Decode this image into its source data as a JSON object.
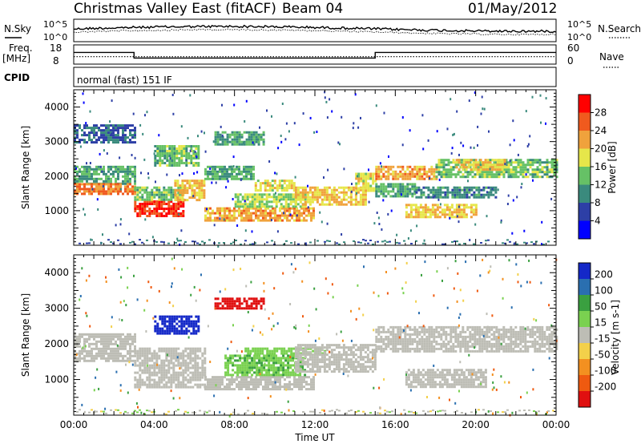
{
  "header": {
    "title": "Christmas Valley East (fitACF)",
    "beam": "Beam 04",
    "date": "01/May/2012"
  },
  "noise_panel": {
    "left_label": "N.Sky",
    "left_ticks": [
      "10^5",
      "10^0"
    ],
    "right_ticks": [
      "10^5",
      "10^0"
    ],
    "right_label": "N.Search"
  },
  "freq_panel": {
    "left_label_line1": "Freq.",
    "left_label_line2": "[MHz]",
    "left_ticks": [
      "18",
      "8"
    ],
    "right_ticks": [
      "60",
      "0"
    ],
    "right_label": "Nave"
  },
  "cpid": {
    "label": "CPID",
    "text": "normal (fast) 151 IF"
  },
  "power_panel": {
    "ylabel": "Slant Range [km]",
    "yticks": [
      "1000",
      "2000",
      "3000",
      "4000"
    ],
    "colorbar_label": "Power [dB]",
    "colorbar_ticks": [
      "4",
      "8",
      "12",
      "16",
      "20",
      "24",
      "28"
    ],
    "colors": [
      "#0000ff",
      "#2d3fa6",
      "#3a8a7d",
      "#66c166",
      "#e6e64a",
      "#f0a23c",
      "#f05a1e",
      "#ff0000"
    ]
  },
  "velocity_panel": {
    "ylabel": "Slant Range [km]",
    "yticks": [
      "1000",
      "2000",
      "3000",
      "4000"
    ],
    "colorbar_label": "Velocity [m s-1]",
    "colorbar_ticks": [
      "200",
      "100",
      "50",
      "15",
      "-15",
      "-50",
      "-100",
      "-200"
    ],
    "colors": [
      "#1428c8",
      "#2a6fb0",
      "#3aa040",
      "#7ad150",
      "#bdbdb5",
      "#f3d04a",
      "#f39020",
      "#ef5a10",
      "#e01010"
    ]
  },
  "xaxis": {
    "ticks": [
      "00:00",
      "04:00",
      "08:00",
      "12:00",
      "16:00",
      "20:00",
      "00:00"
    ],
    "label": "Time UT"
  },
  "chart_data": {
    "type": "heatmap",
    "title": "Christmas Valley East (fitACF)",
    "x_unit": "hours UT",
    "xlim": [
      0,
      24
    ],
    "ylim": [
      0,
      4500
    ],
    "freq_segments": [
      {
        "start": 0,
        "end": 3,
        "freq_mhz": 14.3
      },
      {
        "start": 3,
        "end": 15,
        "freq_mhz": 10.8
      },
      {
        "start": 15,
        "end": 24,
        "freq_mhz": 14.3
      }
    ],
    "nave_level": 10,
    "power_bands": [
      {
        "t0": 0.0,
        "t1": 3.0,
        "r0": 1800,
        "r1": 2300,
        "db": 12
      },
      {
        "t0": 0.0,
        "t1": 3.0,
        "r0": 1500,
        "r1": 1800,
        "db": 24
      },
      {
        "t0": 0.0,
        "t1": 3.0,
        "r0": 3000,
        "r1": 3500,
        "db": 8
      },
      {
        "t0": 3.0,
        "t1": 5.5,
        "r0": 850,
        "r1": 1300,
        "db": 28
      },
      {
        "t0": 3.0,
        "t1": 5.5,
        "r0": 1300,
        "r1": 1700,
        "db": 14
      },
      {
        "t0": 5.0,
        "t1": 6.5,
        "r0": 1300,
        "r1": 1900,
        "db": 20
      },
      {
        "t0": 4.0,
        "t1": 6.2,
        "r0": 2300,
        "r1": 2900,
        "db": 14
      },
      {
        "t0": 6.5,
        "t1": 9.0,
        "r0": 1900,
        "r1": 2300,
        "db": 12
      },
      {
        "t0": 7.0,
        "t1": 9.5,
        "r0": 2900,
        "r1": 3300,
        "db": 12
      },
      {
        "t0": 6.5,
        "t1": 12.0,
        "r0": 700,
        "r1": 1100,
        "db": 22
      },
      {
        "t0": 8.0,
        "t1": 11.5,
        "r0": 1100,
        "r1": 1500,
        "db": 16
      },
      {
        "t0": 9.0,
        "t1": 11.0,
        "r0": 1600,
        "r1": 1900,
        "db": 18
      },
      {
        "t0": 11.0,
        "t1": 14.5,
        "r0": 1200,
        "r1": 1700,
        "db": 20
      },
      {
        "t0": 14.0,
        "t1": 15.0,
        "r0": 1600,
        "r1": 2100,
        "db": 18
      },
      {
        "t0": 15.0,
        "t1": 18.0,
        "r0": 1900,
        "r1": 2300,
        "db": 22
      },
      {
        "t0": 15.0,
        "t1": 17.0,
        "r0": 1400,
        "r1": 1800,
        "db": 12
      },
      {
        "t0": 16.5,
        "t1": 20.0,
        "r0": 800,
        "r1": 1200,
        "db": 20
      },
      {
        "t0": 18.0,
        "t1": 24.0,
        "r0": 2000,
        "r1": 2500,
        "db": 14
      },
      {
        "t0": 19.0,
        "t1": 21.5,
        "r0": 2200,
        "r1": 2500,
        "db": 20
      },
      {
        "t0": 17.0,
        "t1": 21.0,
        "r0": 1400,
        "r1": 1700,
        "db": 10
      }
    ],
    "velocity_bands": [
      {
        "t0": 0.0,
        "t1": 3.0,
        "r0": 1500,
        "r1": 2300,
        "v": 0
      },
      {
        "t0": 3.0,
        "t1": 6.5,
        "r0": 800,
        "r1": 1900,
        "v": 0
      },
      {
        "t0": 4.0,
        "t1": 6.2,
        "r0": 2300,
        "r1": 2800,
        "v": 220
      },
      {
        "t0": 7.0,
        "t1": 9.5,
        "r0": 3000,
        "r1": 3300,
        "v": -220
      },
      {
        "t0": 6.5,
        "t1": 12.0,
        "r0": 700,
        "r1": 1100,
        "v": 0
      },
      {
        "t0": 7.5,
        "t1": 11.5,
        "r0": 1100,
        "r1": 1700,
        "v": 45
      },
      {
        "t0": 8.5,
        "t1": 12.5,
        "r0": 1700,
        "r1": 1900,
        "v": 30
      },
      {
        "t0": 11.0,
        "t1": 15.0,
        "r0": 1200,
        "r1": 2000,
        "v": 0
      },
      {
        "t0": 15.0,
        "t1": 24.0,
        "r0": 1800,
        "r1": 2500,
        "v": 0
      },
      {
        "t0": 16.5,
        "t1": 20.5,
        "r0": 800,
        "r1": 1300,
        "v": 0
      }
    ]
  }
}
